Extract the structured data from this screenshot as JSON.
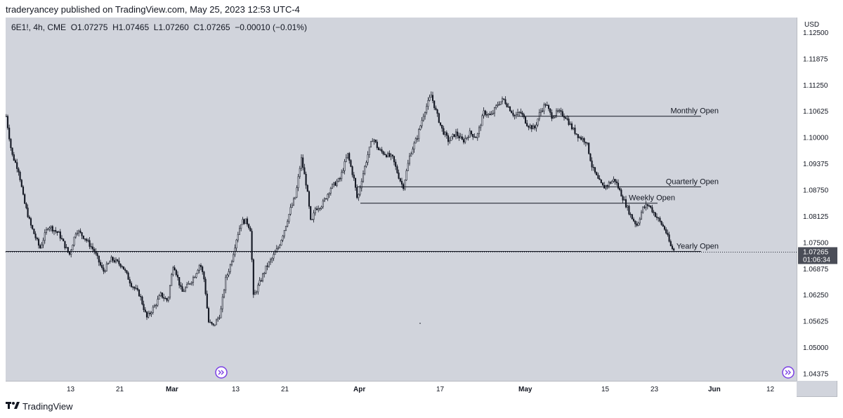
{
  "header": {
    "published": "traderyancey published on TradingView.com, May 25, 2023 12:53 UTC-4"
  },
  "symbol_info": "6E1!, 4h, CME  O1.07275  H1.07465  L1.07260  C1.07265  −0.00010 (−0.01%)",
  "footer": {
    "brand": "TradingView",
    "logo_icon": "tradingview-logo-icon"
  },
  "colors": {
    "background": "#d1d4dc",
    "candle": "#131722",
    "axis_bg": "#ffffff",
    "accent": "#7b3fe4"
  },
  "price_axis": {
    "currency": "USD",
    "current_price": "1.07265",
    "countdown": "01:06:34"
  },
  "chart_data": {
    "type": "candlestick",
    "y_ticks": [
      "1.12500",
      "1.11875",
      "1.11250",
      "1.10625",
      "1.10000",
      "1.09375",
      "1.08750",
      "1.08125",
      "1.07500",
      "1.06875",
      "1.06250",
      "1.05625",
      "1.05000",
      "1.04375"
    ],
    "ylim": [
      1.042,
      1.1285
    ],
    "x_ticks": [
      "13",
      "21",
      "Mar",
      "13",
      "21",
      "Apr",
      "17",
      "May",
      "15",
      "23",
      "Jun",
      "12"
    ],
    "close_path": [
      [
        0,
        1.105
      ],
      [
        8,
        1.096
      ],
      [
        18,
        1.092
      ],
      [
        25,
        1.085
      ],
      [
        35,
        1.079
      ],
      [
        48,
        1.0735
      ],
      [
        60,
        1.079
      ],
      [
        75,
        1.077
      ],
      [
        90,
        1.072
      ],
      [
        100,
        1.078
      ],
      [
        112,
        1.076
      ],
      [
        125,
        1.073
      ],
      [
        138,
        1.068
      ],
      [
        150,
        1.071
      ],
      [
        165,
        1.0695
      ],
      [
        178,
        1.065
      ],
      [
        190,
        1.0625
      ],
      [
        200,
        1.057
      ],
      [
        212,
        1.06
      ],
      [
        220,
        1.0625
      ],
      [
        230,
        1.061
      ],
      [
        238,
        1.07
      ],
      [
        245,
        1.066
      ],
      [
        250,
        1.063
      ],
      [
        260,
        1.065
      ],
      [
        268,
        1.067
      ],
      [
        276,
        1.07
      ],
      [
        282,
        1.066
      ],
      [
        288,
        1.056
      ],
      [
        295,
        1.055
      ],
      [
        305,
        1.058
      ],
      [
        312,
        1.066
      ],
      [
        320,
        1.07
      ],
      [
        328,
        1.076
      ],
      [
        335,
        1.08
      ],
      [
        342,
        1.08
      ],
      [
        348,
        1.078
      ],
      [
        352,
        1.062
      ],
      [
        360,
        1.065
      ],
      [
        370,
        1.069
      ],
      [
        378,
        1.071
      ],
      [
        388,
        1.074
      ],
      [
        396,
        1.078
      ],
      [
        405,
        1.083
      ],
      [
        412,
        1.086
      ],
      [
        420,
        1.095
      ],
      [
        428,
        1.088
      ],
      [
        434,
        1.079
      ],
      [
        440,
        1.083
      ],
      [
        450,
        1.084
      ],
      [
        462,
        1.088
      ],
      [
        475,
        1.09
      ],
      [
        486,
        1.096
      ],
      [
        495,
        1.09
      ],
      [
        500,
        1.085
      ],
      [
        506,
        1.09
      ],
      [
        515,
        1.096
      ],
      [
        522,
        1.1
      ],
      [
        530,
        1.097
      ],
      [
        540,
        1.096
      ],
      [
        550,
        1.095
      ],
      [
        558,
        1.091
      ],
      [
        565,
        1.088
      ],
      [
        575,
        1.096
      ],
      [
        585,
        1.1
      ],
      [
        595,
        1.106
      ],
      [
        605,
        1.11
      ],
      [
        612,
        1.106
      ],
      [
        620,
        1.102
      ],
      [
        630,
        1.099
      ],
      [
        640,
        1.101
      ],
      [
        650,
        1.099
      ],
      [
        660,
        1.101
      ],
      [
        670,
        1.1
      ],
      [
        680,
        1.106
      ],
      [
        690,
        1.105
      ],
      [
        700,
        1.108
      ],
      [
        708,
        1.109
      ],
      [
        716,
        1.107
      ],
      [
        724,
        1.105
      ],
      [
        732,
        1.106
      ],
      [
        742,
        1.103
      ],
      [
        752,
        1.102
      ],
      [
        760,
        1.106
      ],
      [
        768,
        1.108
      ],
      [
        776,
        1.105
      ],
      [
        786,
        1.106
      ],
      [
        796,
        1.105
      ],
      [
        806,
        1.102
      ],
      [
        816,
        1.1
      ],
      [
        826,
        1.099
      ],
      [
        834,
        1.093
      ],
      [
        842,
        1.09
      ],
      [
        850,
        1.088
      ],
      [
        858,
        1.089
      ],
      [
        866,
        1.09
      ],
      [
        874,
        1.087
      ],
      [
        882,
        1.084
      ],
      [
        890,
        1.081
      ],
      [
        898,
        1.079
      ],
      [
        906,
        1.083
      ],
      [
        914,
        1.084
      ],
      [
        922,
        1.082
      ],
      [
        930,
        1.08
      ],
      [
        938,
        1.078
      ],
      [
        946,
        1.074
      ],
      [
        952,
        1.0727
      ]
    ],
    "levels": [
      {
        "label": "Monthly Open",
        "price": 1.105,
        "x_start": 728,
        "x_end": 990
      },
      {
        "label": "Quarterly Open",
        "price": 1.0882,
        "x_start": 500,
        "x_end": 990
      },
      {
        "label": "Weekly Open",
        "price": 1.0843,
        "x_start": 505,
        "x_end": 928
      },
      {
        "label": "Yearly Open",
        "price": 1.0728,
        "x_start": 0,
        "x_end": 990
      }
    ]
  }
}
